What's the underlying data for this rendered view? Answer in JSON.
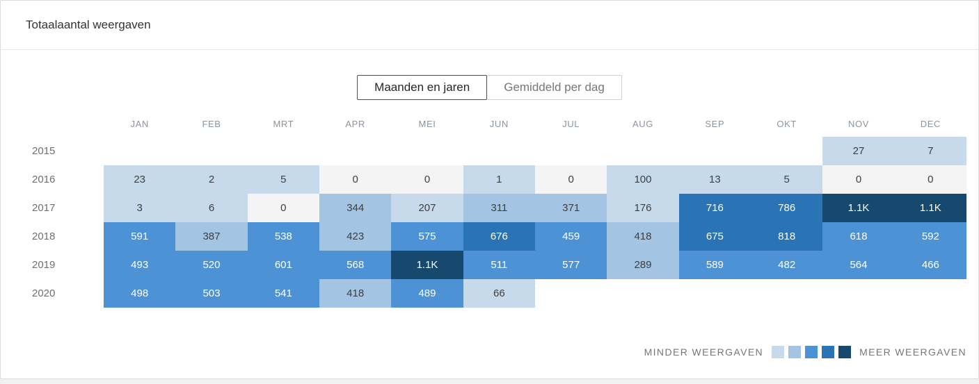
{
  "card": {
    "title": "Totaalaantal weergaven"
  },
  "toggle": {
    "options": [
      {
        "label": "Maanden en jaren",
        "selected": true
      },
      {
        "label": "Gemiddeld per dag",
        "selected": false
      }
    ]
  },
  "legend": {
    "less_label": "MINDER WEERGAVEN",
    "more_label": "MEER WEERGAVEN"
  },
  "chart_data": {
    "type": "heatmap",
    "title": "Totaalaantal weergaven",
    "columns": [
      "JAN",
      "FEB",
      "MRT",
      "APR",
      "MEI",
      "JUN",
      "JUL",
      "AUG",
      "SEP",
      "OKT",
      "NOV",
      "DEC"
    ],
    "rows": [
      {
        "year": "2015",
        "values": [
          null,
          null,
          null,
          null,
          null,
          null,
          null,
          null,
          null,
          null,
          27,
          7
        ]
      },
      {
        "year": "2016",
        "values": [
          23,
          2,
          5,
          0,
          0,
          1,
          0,
          100,
          13,
          5,
          0,
          0
        ]
      },
      {
        "year": "2017",
        "values": [
          3,
          6,
          0,
          344,
          207,
          311,
          371,
          176,
          716,
          786,
          "1.1K",
          "1.1K"
        ]
      },
      {
        "year": "2018",
        "values": [
          591,
          387,
          538,
          423,
          575,
          676,
          459,
          418,
          675,
          818,
          618,
          592
        ]
      },
      {
        "year": "2019",
        "values": [
          493,
          520,
          601,
          568,
          "1.1K",
          511,
          577,
          289,
          589,
          482,
          564,
          466
        ]
      },
      {
        "year": "2020",
        "values": [
          498,
          503,
          541,
          418,
          489,
          66,
          null,
          null,
          null,
          null,
          null,
          null
        ]
      }
    ],
    "palette": {
      "zero": "#f4f4f4",
      "scale": [
        "#c7daec",
        "#a3c4e3",
        "#4d92d4",
        "#2a73b5",
        "#17486e"
      ],
      "thresholds": [
        230,
        440,
        650,
        1000
      ]
    },
    "legend_position": "bottom-right",
    "grid": false
  }
}
